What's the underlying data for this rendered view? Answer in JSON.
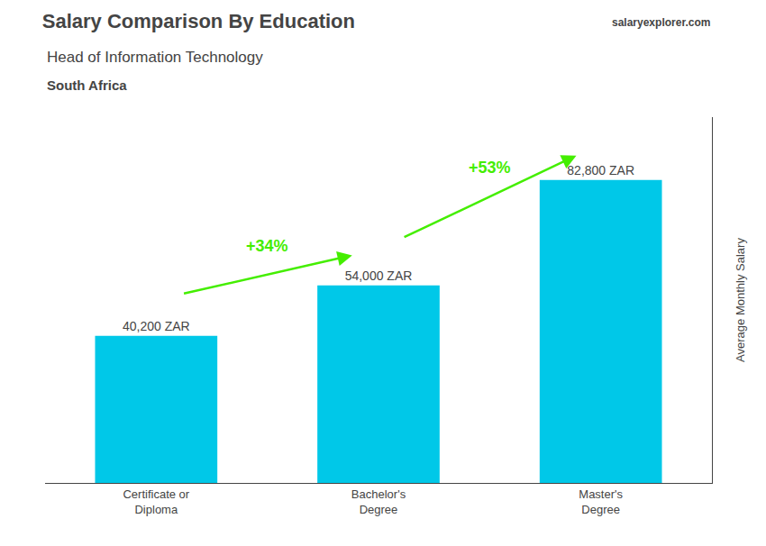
{
  "chart_data": {
    "type": "bar",
    "title": "Salary Comparison By Education",
    "subtitle": "Head of Information Technology",
    "country": "South Africa",
    "website": "salaryexplorer.com",
    "y_label": "Average Monthly Salary",
    "categories": [
      "Certificate or\nDiploma",
      "Bachelor's\nDegree",
      "Master's\nDegree"
    ],
    "values": [
      40200,
      54000,
      82800
    ],
    "value_labels": [
      "40,200 ZAR",
      "54,000 ZAR",
      "82,800 ZAR"
    ],
    "data_labels": true,
    "color": "#00c8e8",
    "annotations": [
      {
        "text": "+34%",
        "color": "#44ee00"
      },
      {
        "text": "+53%",
        "color": "#44ee00"
      }
    ],
    "ylim": [
      0,
      100000
    ],
    "tick_labels": false,
    "grid": false,
    "legend": false
  }
}
